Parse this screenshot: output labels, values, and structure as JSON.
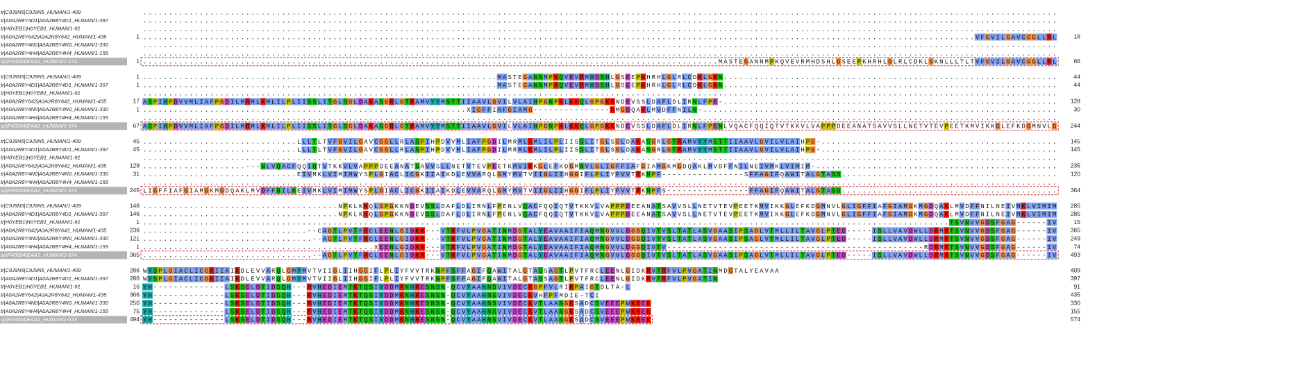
{
  "sequences": [
    {
      "name": "tr|C9J9N5|C9J9N5_HUMAN/1-409"
    },
    {
      "name": "tr|A0A2R8Y4D1|A0A2R8Y4D1_HUMAN/1-397"
    },
    {
      "name": "tr|H0YEB1|H0YEB1_HUMAN/1-91"
    },
    {
      "name": "tr|A0A2R8Y642|A0A2R8Y642_HUMAN/1-435"
    },
    {
      "name": "tr|A0A2R8Y4N0|A0A2R8Y4N0_HUMAN/1-330"
    },
    {
      "name": "tr|A0A2R8Y4H4|A0A2R8Y4H4_HUMAN/1-155"
    },
    {
      "name": "sp|P43004|EAA2_HUMAN/1-574",
      "selected": true
    }
  ],
  "blocks": [
    {
      "rows": [
        {
          "seq": ".................................................................................................................................................................................."
        },
        {
          "seq": ".................................................................................................................................................................................."
        },
        {
          "seq": ".................................................................................................................................................................................."
        },
        {
          "start": 1,
          "end": 16,
          "seq": "..................................................................................................................................................................VFGVILGAVCGGLLRL"
        },
        {
          "seq": ".................................................................................................................................................................................."
        },
        {
          "seq": ".................................................................................................................................................................................."
        },
        {
          "start": 1,
          "end": 66,
          "seq": "................................................................................................................MASTEGANNMPKQVEVRMHDSHLGSEEPKHRHLGLRLCDKLGKNLLLTLTVFGVILGAVCGGLLRL"
        }
      ]
    },
    {
      "rows": [
        {
          "start": 1,
          "end": 44,
          "seq": ".....................................................................MASTEGANNMPKQVEVRMHDSHLGSEEPKHRHLGLRLCDKLGKN................................................................."
        },
        {
          "start": 1,
          "end": 44,
          "seq": ".....................................................................MASTEGANNMPKQVEVRMHDSHLGSEEPKHRHLGLRLCDKLGKN................................................................."
        },
        {
          "seq": ".................................................................................................................................................................................."
        },
        {
          "start": 17,
          "end": 128,
          "seq": "ASPIHPDVVMLIAFPGDILMRMLKMLILPLIISSLITGLSGLDAKASGRLGTRAMVYYMSTTIIAAVLGVILVLAIHPGNPKLKKQLGPGKKNDEVSSLDAFLDLIRNLFPE-................................................................."
        },
        {
          "start": 1,
          "end": 30,
          "seq": "...............................................................XIGFFIAFGIAMG---------------KMGDQAKLMVDFFNILN-....................................................................."
        },
        {
          "seq": ".................................................................................................................................................................................."
        },
        {
          "start": 67,
          "end": 244,
          "seq": "ASPIHPDVVMLIAFPGDILMRMLKMLILPLIISSLITGLSGLDAKASGRLGTRAMVYYMSTTIIAAVLGVILVLAIHPGNPKLKKQLGPGKKNDEVSSLDAFLDLIRNLFPENLVQACFQQIQTVTKKVLVAPPPDEEANATSAVVSLLNETVTEVPEETKMVIKKGLEFKDGMNVLG"
        }
      ]
    },
    {
      "rows": [
        {
          "start": 45,
          "end": 145,
          "seq": "..............................LLLTLTVFGVILGAVCGGLLRLASPIHPDVVMLIAFPGDILMRMLKMLILPLIISSLITGLSGLDAKASGRLGTRAMVYYMSTTIIAAVLGVILVLAIHPG-.............................................."
        },
        {
          "start": 45,
          "end": 145,
          "seq": "..............................LLLTLTVFGVILGAVCGGLLRLASPIHPDVVMLIAFPGDILMRMLKMLILPLIISSLITGLSGLDAKASGRLGTRAMVYYMSTTIIAAVLGVILVLAIHPG-.............................................."
        },
        {
          "seq": ".................................................................................................................................................................................."
        },
        {
          "start": 129,
          "end": 235,
          "seq": "....................---NLVQACFQQIQTVTKKVLVAPPPDEEANATSAVVSLLNETVTEVPEETKMVIKKGLEFKDGMNVLGLIGFFIAFGIAMGKMGDQAKLMVDFFNILNEIVMKLVIMIM-..............................................."
        },
        {
          "start": 31,
          "end": 120,
          "seq": "..............................EIVMKLVIMIMWYSPLGIACLICGKIIAIKDLEVVARQLGMYMVTVIIGLIIHGGIFLPLIYFVVTRKNPF----------------SFFAGIFQAWITALGTASS.........................................."
        },
        {
          "seq": ".................................................................................................................................................................................."
        },
        {
          "start": 245,
          "end": 364,
          "seq": "LIGFFIAFGIAMGKMGDQAKLMVDFFNILNEIVMKLVIMIMWYSPLGIACLICGKIIAIKDLEVVARQLGMYMVTVIIGLIIHGGIFLPLIYFVVTRKNPFS----------------FFAGIFQAWITALGTASS.........................................."
        }
      ]
    },
    {
      "rows": [
        {
          "start": 146,
          "end": 285,
          "seq": "......................................NPKLKKQLGPGKKNDEVSSLDAFLDLIRNLFPENLVQACFQQIQTVTKKVLVAPPPDEEANATSAVVSLLNETVTEVPEETKMVIKKGLEFKDGMNVLGLIGFFIAFGIAMGKMGDQAKLMVDFFNILNEIVMKLVIMIM"
        },
        {
          "start": 146,
          "end": 285,
          "seq": "......................................NPKLKKQLGPGKKNDEVSSLDAFLDLIRNLFPENLVQACFQQIQTVTKKVLVAPPPDEEANATSAVVSLLNETVTEVPEETKMVIKKGLEFKDGMNVLGLIGFFIAFGIAMGKMGDQAKLMVDFFNILNEIVMKLVIMIM"
        },
        {
          "start": 1,
          "end": 15,
          "seq": ".............................................................................................................................................................TSVNVVGDSFGAG------IV"
        },
        {
          "start": 236,
          "end": 365,
          "seq": "................................--CAGTLPVTFRCLEENLGIDKR---VTRFVLPVGATINMDGTALYEAVAAIFIAQMNGVVLDGGQIVTVSLTATLASVGAASIPSAGLVTMLLILTAVGLPTED-----ISLLVAVDWLLDRMRTSVNVVGDSFGAG------IV"
        },
        {
          "start": 121,
          "end": 249,
          "seq": ".................................--AGTLPVTFRCLEENLGIDKR---VTRFVLPVGATINMDGTALYEAVAAIFIAQMNGVVLDGGQIVTVSLTATLASVGAASIPSAGLVTMLLILTAVGLPTED-----ISLLVAVDWLLDRMRTSVNVVGDSFGAG------IV"
        },
        {
          "start": 1,
          "end": 74,
          "seq": ".............................................XEENLGIDKR---VTRFVLPVGATINMDGTALYEAVAAIFIAQMNGVVLDGGQIVTV--------------------------------------------------RDRMRTSVNVVGDSFGAG------IV"
        },
        {
          "start": 365,
          "end": 493,
          "seq": ".................................--AGTLPVTFRCLEENLGIDKR---VTRFVLPVGATINMDGTALYEAVAAIFIAQMNGVVLDGGQIVTVSLTATLASVGAASIPSAGLVTMLLILTAVGLPTED-----ISLLVAVDWLLDRMRTSVNVVGDSFGAG------IV"
        }
      ]
    },
    {
      "rows": [
        {
          "start": 286,
          "end": 409,
          "seq": "WYSPLGIACLICGKIIAIKDLEVVARQLGMYMVTVIIGLIIHGGIFLPLIYFVVTRKNPFSFFAGIFQAWITALGTASSAGTLPVTFRCLEENLGIDKRVTRFVLPVGATINMDGTALYEAVAA"
        },
        {
          "start": 286,
          "end": 397,
          "seq": "WYSPLGIACLICGKIIAIKDLEVVARQLGMYMVTVIIGLIIHGGIFLPLIYFVVTRKNPFSFFAGIFQAWITALGTASSAGTLPVTFRCLEENLGIDKRVTRFVLPVGATIN"
        },
        {
          "start": 16,
          "end": 91,
          "seq": "YH--------------LSKSELDTIDSQH---RVHEDIEMTKTQSIYDDMKNHRESNSN-QCVYAAHNSVIVDECKGPFVLRIKPAIGTDLTA-L"
        },
        {
          "start": 366,
          "end": 435,
          "seq": "YH--------------LSKSELDTIDSQH---RVHEDIEMTKTQSIYDDMKNHRESNSN-QCVYAAHNSVIVDECKVHFPFMDIE-TCI"
        },
        {
          "start": 250,
          "end": 330,
          "seq": "YH--------------LSKSELDTIDSQH---RVHEDIEMTKTQSIYDDMKNHRESNSN-QCVYAAHNSVIVDECKVTLAANGKSADCSVEEEPWKREK"
        },
        {
          "start": 75,
          "end": 155,
          "seq": "YH--------------LSKSELDTIDSQH---RVHEDIEMTKTQSIYDDMKNHRESNSN-QCVYAAHNSVIVDECKVTLAANGKSADCSVEEEPWKREK"
        },
        {
          "start": 494,
          "end": 574,
          "seq": "YH--------------LSKSELDTIDSQH---RVHEDIEMTKTQSIYDDMKNHRESNSN-QCVYAAHNSVIVDECKVTLAANGKSADCSVEEEPWKREK"
        }
      ]
    }
  ]
}
